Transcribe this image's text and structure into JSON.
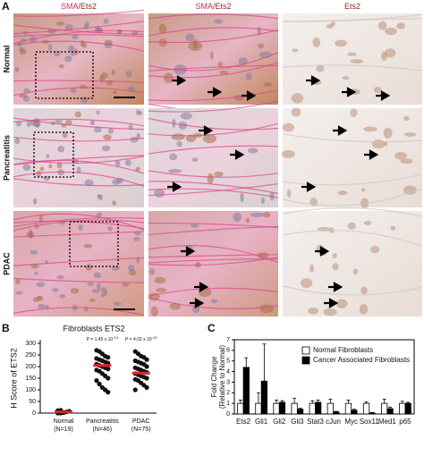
{
  "panel_a": {
    "label": "A",
    "columns": [
      [
        {
          "text": "SMA",
          "color": "#c8305e"
        },
        {
          "text": "/Ets2",
          "color": "#8a2b1c"
        }
      ],
      [
        {
          "text": "SMA",
          "color": "#c8305e"
        },
        {
          "text": "/Ets2",
          "color": "#8a2b1c"
        }
      ],
      [
        {
          "text": "Ets2",
          "color": "#8a2b1c"
        }
      ]
    ],
    "rows": [
      "Normal",
      "Pancreatitis",
      "PDAC"
    ]
  },
  "chart_data": [
    {
      "type": "strip",
      "label": "B",
      "title": "Fibroblasts ETS2",
      "y_label": "H Score of ETS2",
      "categories": [
        "Normal",
        "Pancreatitis",
        "PDAC"
      ],
      "category_counts": [
        "(N=19)",
        "(N=46)",
        "(N=75)"
      ],
      "points": [
        [
          0,
          0,
          2,
          5,
          8,
          10,
          12
        ],
        [
          270,
          265,
          255,
          245,
          240,
          235,
          230,
          225,
          220,
          215,
          210,
          205,
          200,
          195,
          190,
          185,
          180,
          170,
          160,
          150,
          140,
          125,
          110,
          100,
          90
        ],
        [
          265,
          255,
          245,
          240,
          230,
          225,
          220,
          215,
          210,
          200,
          195,
          190,
          185,
          180,
          175,
          170,
          165,
          160,
          155,
          150,
          145,
          140,
          130,
          120,
          110,
          100
        ]
      ],
      "point_color": "#111111",
      "means": [
        5,
        205,
        172
      ],
      "mean_color": "#e02424",
      "p_values": [
        null,
        {
          "base": "P = 1.45 x 10",
          "exp": "-13"
        },
        {
          "base": "P = 4.02 x 10",
          "exp": "-15"
        }
      ],
      "ylim": [
        0,
        300
      ],
      "yticks": [
        0,
        50,
        100,
        150,
        200,
        250,
        300
      ]
    },
    {
      "type": "bar",
      "label": "C",
      "y_label": [
        "Fold Change",
        "(Relative to Normal)"
      ],
      "categories": [
        "Ets2",
        "Gli1",
        "Gli2",
        "Gli3",
        "Stat3",
        "cJun",
        "Myc",
        "Sox11",
        "Med1",
        "p65"
      ],
      "series": [
        {
          "name": "Normal Fibroblasts",
          "color": "#ffffff",
          "values": [
            1,
            1,
            1,
            1,
            1,
            1,
            1,
            1,
            1,
            1
          ],
          "errors": [
            0.3,
            1.0,
            0.3,
            0.5,
            0.25,
            0.4,
            0.3,
            0.15,
            0.4,
            0.2
          ]
        },
        {
          "name": "Cancer Associated Fibroblasts",
          "color": "#000000",
          "values": [
            4.4,
            3.1,
            1.1,
            0.45,
            1.1,
            0.2,
            0.35,
            0.1,
            0.5,
            1.0
          ],
          "errors": [
            0.9,
            3.5,
            0.15,
            0.1,
            0.2,
            0.05,
            0.1,
            0.05,
            0.15,
            0.1
          ]
        }
      ],
      "legend": "top-right",
      "ylim": [
        0,
        7
      ],
      "yticks": [
        0,
        1,
        2,
        3,
        4,
        5,
        6,
        7
      ]
    }
  ]
}
